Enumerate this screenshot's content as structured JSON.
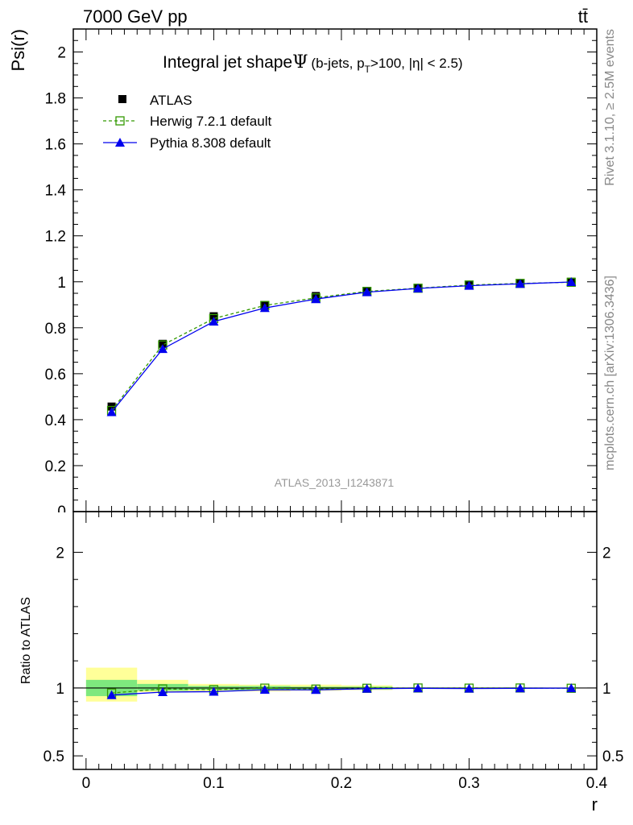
{
  "header": {
    "left": "7000 GeV pp",
    "right": "tt̄"
  },
  "side_text": {
    "rivet": "Rivet 3.1.10, ≥ 2.5M events",
    "mcplots": "mcplots.cern.ch [arXiv:1306.3436]"
  },
  "chart_data": [
    {
      "type": "line",
      "title_main": "Integral jet shape",
      "title_symbol": "Ψ",
      "title_cond_a": "(b-jets, p",
      "title_cond_sub": "T",
      "title_cond_b": ">100, |η| < 2.5)",
      "ylabel": "Psi(r)",
      "watermark": "ATLAS_2013_I1243871",
      "xlim": [
        -0.01,
        0.4
      ],
      "ylim": [
        0,
        2.1
      ],
      "yticks": [
        {
          "v": 0.2,
          "label": "0.2"
        },
        {
          "v": 0.4,
          "label": "0.4"
        },
        {
          "v": 0.6,
          "label": "0.6"
        },
        {
          "v": 0.8,
          "label": "0.8"
        },
        {
          "v": 1.0,
          "label": "1"
        },
        {
          "v": 1.2,
          "label": "1.2"
        },
        {
          "v": 1.4,
          "label": "1.4"
        },
        {
          "v": 1.6,
          "label": "1.6"
        },
        {
          "v": 1.8,
          "label": "1.8"
        },
        {
          "v": 2.0,
          "label": "2"
        }
      ],
      "x": [
        0.02,
        0.06,
        0.1,
        0.14,
        0.18,
        0.22,
        0.26,
        0.3,
        0.34,
        0.38
      ],
      "series": [
        {
          "name": "ATLAS",
          "style": "data",
          "color": "#000000",
          "values": [
            0.457,
            0.73,
            0.85,
            0.898,
            0.938,
            0.96,
            0.973,
            0.987,
            0.993,
            1.0
          ]
        },
        {
          "name": "Herwig 7.2.1 default",
          "style": "herwig",
          "color": "#339900",
          "values": [
            0.44,
            0.725,
            0.84,
            0.897,
            0.93,
            0.958,
            0.972,
            0.986,
            0.993,
            0.998
          ]
        },
        {
          "name": "Pythia 8.308 default",
          "style": "pythia",
          "color": "#0000ee",
          "values": [
            0.433,
            0.708,
            0.827,
            0.886,
            0.925,
            0.955,
            0.971,
            0.983,
            0.991,
            0.999
          ]
        }
      ]
    },
    {
      "type": "line",
      "ylabel": "Ratio to ATLAS",
      "xlabel": "r",
      "xlim": [
        -0.01,
        0.4
      ],
      "ylim": [
        0.4,
        2.3
      ],
      "xticks": [
        {
          "v": 0,
          "label": "0"
        },
        {
          "v": 0.1,
          "label": "0.1"
        },
        {
          "v": 0.2,
          "label": "0.2"
        },
        {
          "v": 0.3,
          "label": "0.3"
        },
        {
          "v": 0.4,
          "label": "0.4"
        }
      ],
      "yticks": [
        {
          "v": 0.5,
          "label": "0.5"
        },
        {
          "v": 1.0,
          "label": "1"
        },
        {
          "v": 2.0,
          "label": "2"
        }
      ],
      "bands": [
        {
          "x0": 0.0,
          "x1": 0.04,
          "stat": [
            0.94,
            1.06
          ],
          "total": [
            0.9,
            1.15
          ]
        },
        {
          "x0": 0.04,
          "x1": 0.08,
          "stat": [
            0.98,
            1.03
          ],
          "total": [
            0.97,
            1.06
          ]
        },
        {
          "x0": 0.08,
          "x1": 0.12,
          "stat": [
            0.985,
            1.015
          ],
          "total": [
            0.975,
            1.03
          ]
        },
        {
          "x0": 0.12,
          "x1": 0.16,
          "stat": [
            0.985,
            1.015
          ],
          "total": [
            0.975,
            1.025
          ]
        },
        {
          "x0": 0.16,
          "x1": 0.2,
          "stat": [
            0.99,
            1.01
          ],
          "total": [
            0.98,
            1.025
          ]
        },
        {
          "x0": 0.2,
          "x1": 0.24,
          "stat": [
            0.99,
            1.01
          ],
          "total": [
            0.985,
            1.02
          ]
        }
      ],
      "x": [
        0.02,
        0.06,
        0.1,
        0.14,
        0.18,
        0.22,
        0.26,
        0.3,
        0.34,
        0.38
      ],
      "series": [
        {
          "name": "Herwig 7.2.1 default",
          "style": "herwig",
          "color": "#339900",
          "values": [
            0.963,
            0.993,
            0.988,
            0.999,
            0.992,
            0.998,
            1.0,
            0.999,
            1.0,
            0.998
          ]
        },
        {
          "name": "Pythia 8.308 default",
          "style": "pythia",
          "color": "#0000ee",
          "values": [
            0.948,
            0.97,
            0.973,
            0.987,
            0.986,
            0.995,
            0.998,
            0.996,
            0.998,
            0.999
          ]
        }
      ],
      "band_colors": {
        "stat": "#7ee87e",
        "total": "#ffff99"
      }
    }
  ]
}
